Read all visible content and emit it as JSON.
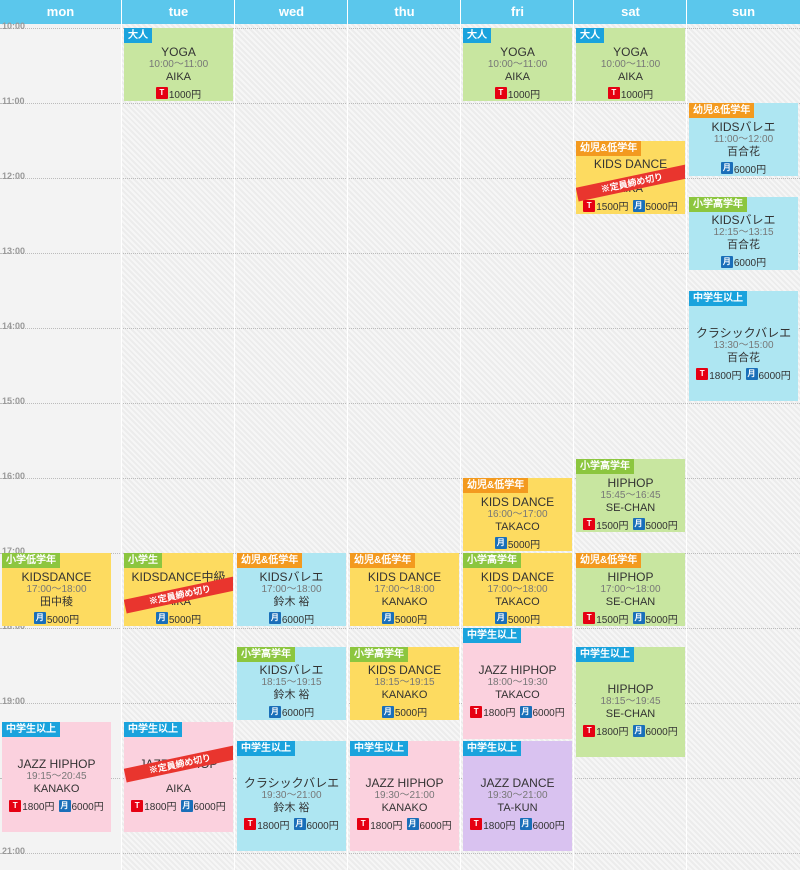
{
  "days": [
    "mon",
    "tue",
    "wed",
    "thu",
    "fri",
    "sat",
    "sun"
  ],
  "times": [
    "10:00",
    "11:00",
    "12:00",
    "13:00",
    "14:00",
    "15:00",
    "16:00",
    "17:00",
    "18:00",
    "19:00",
    "20:00",
    "21:00"
  ],
  "colors": {
    "header": "#5bc7ec",
    "green": "#c8e6a0",
    "blue": "#aee6f2",
    "yellow": "#fddb60",
    "pink": "#fbd1de",
    "purple": "#d9c2f0",
    "ribbon": "#e9352e"
  },
  "price_icons": {
    "ticket": "T",
    "monthly": "月"
  },
  "events": [
    {
      "day": 1,
      "start": 600,
      "end": 660,
      "color": "green",
      "tag": "大人",
      "tag_color": "blue",
      "title": "YOGA",
      "time": "10:00〜11:00",
      "instructor": "AIKA",
      "prices": [
        {
          "type": "t",
          "label": "1000円"
        }
      ]
    },
    {
      "day": 4,
      "start": 600,
      "end": 660,
      "color": "green",
      "tag": "大人",
      "tag_color": "blue",
      "title": "YOGA",
      "time": "10:00〜11:00",
      "instructor": "AIKA",
      "prices": [
        {
          "type": "t",
          "label": "1000円"
        }
      ]
    },
    {
      "day": 5,
      "start": 600,
      "end": 660,
      "color": "green",
      "tag": "大人",
      "tag_color": "blue",
      "title": "YOGA",
      "time": "10:00〜11:00",
      "instructor": "AIKA",
      "prices": [
        {
          "type": "t",
          "label": "1000円"
        }
      ]
    },
    {
      "day": 6,
      "start": 660,
      "end": 720,
      "color": "blue",
      "tag": "幼児&低学年",
      "tag_color": "orange",
      "title": "KIDSバレエ",
      "time": "11:00〜12:00",
      "instructor": "百合花",
      "prices": [
        {
          "type": "m",
          "label": "6000円"
        }
      ]
    },
    {
      "day": 5,
      "start": 690,
      "end": 750,
      "color": "yellow",
      "tag": "幼児&低学年",
      "tag_color": "orange",
      "title": "KIDS DANCE",
      "time": "",
      "instructor": "AIKA",
      "ribbon": "※定員締め切り",
      "prices": [
        {
          "type": "t",
          "label": "1500円"
        },
        {
          "type": "m",
          "label": "5000円"
        }
      ]
    },
    {
      "day": 6,
      "start": 735,
      "end": 795,
      "color": "blue",
      "tag": "小学高学年",
      "tag_color": "green",
      "title": "KIDSバレエ",
      "time": "12:15〜13:15",
      "instructor": "百合花",
      "prices": [
        {
          "type": "m",
          "label": "6000円"
        }
      ]
    },
    {
      "day": 6,
      "start": 810,
      "end": 900,
      "color": "blue",
      "tag": "中学生以上",
      "tag_color": "blue",
      "title": "クラシックバレエ",
      "time": "13:30〜15:00",
      "instructor": "百合花",
      "prices": [
        {
          "type": "t",
          "label": "1800円"
        },
        {
          "type": "m",
          "label": "6000円"
        }
      ]
    },
    {
      "day": 5,
      "start": 945,
      "end": 1005,
      "color": "green",
      "tag": "小学高学年",
      "tag_color": "green",
      "title": "HIPHOP",
      "time": "15:45〜16:45",
      "instructor": "SE-CHAN",
      "prices": [
        {
          "type": "t",
          "label": "1500円"
        },
        {
          "type": "m",
          "label": "5000円"
        }
      ]
    },
    {
      "day": 4,
      "start": 960,
      "end": 1020,
      "color": "yellow",
      "tag": "幼児&低学年",
      "tag_color": "orange",
      "title": "KIDS DANCE",
      "time": "16:00〜17:00",
      "instructor": "TAKACO",
      "prices": [
        {
          "type": "m",
          "label": "5000円"
        }
      ]
    },
    {
      "day": 0,
      "start": 1020,
      "end": 1080,
      "color": "yellow",
      "tag": "小学低学年",
      "tag_color": "green",
      "title": "KIDSDANCE",
      "time": "17:00〜18:00",
      "instructor": "田中稜",
      "prices": [
        {
          "type": "m",
          "label": "5000円"
        }
      ]
    },
    {
      "day": 1,
      "start": 1020,
      "end": 1080,
      "color": "yellow",
      "tag": "小学生",
      "tag_color": "green",
      "title": "KIDSDANCE中級",
      "time": "",
      "instructor": "AIKA",
      "ribbon": "※定員締め切り",
      "prices": [
        {
          "type": "m",
          "label": "5000円"
        }
      ]
    },
    {
      "day": 2,
      "start": 1020,
      "end": 1080,
      "color": "blue",
      "tag": "幼児&低学年",
      "tag_color": "orange",
      "title": "KIDSバレエ",
      "time": "17:00〜18:00",
      "instructor": "鈴木 裕",
      "prices": [
        {
          "type": "m",
          "label": "6000円"
        }
      ]
    },
    {
      "day": 3,
      "start": 1020,
      "end": 1080,
      "color": "yellow",
      "tag": "幼児&低学年",
      "tag_color": "orange",
      "title": "KIDS DANCE",
      "time": "17:00〜18:00",
      "instructor": "KANAKO",
      "prices": [
        {
          "type": "m",
          "label": "5000円"
        }
      ]
    },
    {
      "day": 4,
      "start": 1020,
      "end": 1080,
      "color": "yellow",
      "tag": "小学高学年",
      "tag_color": "green",
      "title": "KIDS DANCE",
      "time": "17:00〜18:00",
      "instructor": "TAKACO",
      "prices": [
        {
          "type": "m",
          "label": "5000円"
        }
      ]
    },
    {
      "day": 5,
      "start": 1020,
      "end": 1080,
      "color": "green",
      "tag": "幼児&低学年",
      "tag_color": "orange",
      "title": "HIPHOP",
      "time": "17:00〜18:00",
      "instructor": "SE-CHAN",
      "prices": [
        {
          "type": "t",
          "label": "1500円"
        },
        {
          "type": "m",
          "label": "5000円"
        }
      ]
    },
    {
      "day": 4,
      "start": 1080,
      "end": 1170,
      "color": "pink",
      "tag": "中学生以上",
      "tag_color": "blue",
      "title": "JAZZ HIPHOP",
      "time": "18:00〜19:30",
      "instructor": "TAKACO",
      "prices": [
        {
          "type": "t",
          "label": "1800円"
        },
        {
          "type": "m",
          "label": "6000円"
        }
      ]
    },
    {
      "day": 5,
      "start": 1095,
      "end": 1185,
      "color": "green",
      "tag": "中学生以上",
      "tag_color": "blue",
      "title": "HIPHOP",
      "time": "18:15〜19:45",
      "instructor": "SE-CHAN",
      "prices": [
        {
          "type": "t",
          "label": "1800円"
        },
        {
          "type": "m",
          "label": "6000円"
        }
      ]
    },
    {
      "day": 2,
      "start": 1095,
      "end": 1155,
      "color": "blue",
      "tag": "小学高学年",
      "tag_color": "green",
      "title": "KIDSバレエ",
      "time": "18:15〜19:15",
      "instructor": "鈴木 裕",
      "prices": [
        {
          "type": "m",
          "label": "6000円"
        }
      ]
    },
    {
      "day": 3,
      "start": 1095,
      "end": 1155,
      "color": "yellow",
      "tag": "小学高学年",
      "tag_color": "green",
      "title": "KIDS DANCE",
      "time": "18:15〜19:15",
      "instructor": "KANAKO",
      "prices": [
        {
          "type": "m",
          "label": "5000円"
        }
      ]
    },
    {
      "day": 0,
      "start": 1155,
      "end": 1245,
      "color": "pink",
      "tag": "中学生以上",
      "tag_color": "blue",
      "title": "JAZZ HIPHOP",
      "time": "19:15〜20:45",
      "instructor": "KANAKO",
      "prices": [
        {
          "type": "t",
          "label": "1800円"
        },
        {
          "type": "m",
          "label": "6000円"
        }
      ]
    },
    {
      "day": 1,
      "start": 1155,
      "end": 1245,
      "color": "pink",
      "tag": "中学生以上",
      "tag_color": "blue",
      "title": "JAZZ HIPHOP",
      "time": "",
      "instructor": "AIKA",
      "ribbon": "※定員締め切り",
      "prices": [
        {
          "type": "t",
          "label": "1800円"
        },
        {
          "type": "m",
          "label": "6000円"
        }
      ]
    },
    {
      "day": 2,
      "start": 1170,
      "end": 1260,
      "color": "blue",
      "tag": "中学生以上",
      "tag_color": "blue",
      "title": "クラシックバレエ",
      "time": "19:30〜21:00",
      "instructor": "鈴木 裕",
      "prices": [
        {
          "type": "t",
          "label": "1800円"
        },
        {
          "type": "m",
          "label": "6000円"
        }
      ]
    },
    {
      "day": 3,
      "start": 1170,
      "end": 1260,
      "color": "pink",
      "tag": "中学生以上",
      "tag_color": "blue",
      "title": "JAZZ HIPHOP",
      "time": "19:30〜21:00",
      "instructor": "KANAKO",
      "prices": [
        {
          "type": "t",
          "label": "1800円"
        },
        {
          "type": "m",
          "label": "6000円"
        }
      ]
    },
    {
      "day": 4,
      "start": 1170,
      "end": 1260,
      "color": "purple",
      "tag": "中学生以上",
      "tag_color": "blue",
      "title": "JAZZ DANCE",
      "time": "19:30〜21:00",
      "instructor": "TA-KUN",
      "prices": [
        {
          "type": "t",
          "label": "1800円"
        },
        {
          "type": "m",
          "label": "6000円"
        }
      ]
    }
  ]
}
